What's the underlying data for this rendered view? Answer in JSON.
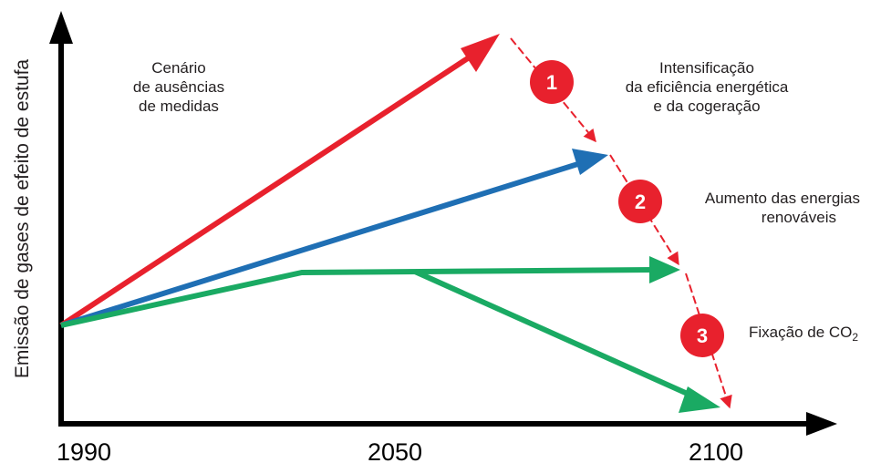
{
  "chart_data": {
    "type": "line",
    "title": "",
    "xlabel": "",
    "ylabel": "Emissão de gases de efeito de estufa",
    "x_ticks": [
      "1990",
      "2050",
      "2100"
    ],
    "series": [
      {
        "color": "#e8212d",
        "points": [
          [
            "1990",
            1.0
          ],
          [
            "2075",
            4.9
          ]
        ]
      },
      {
        "color": "#1f6fb4",
        "points": [
          [
            "1990",
            1.0
          ],
          [
            "2090",
            2.9
          ]
        ]
      },
      {
        "color": "#1aaa63",
        "points": [
          [
            "1990",
            1.0
          ],
          [
            "2030",
            1.9
          ],
          [
            "2100",
            1.9
          ]
        ]
      },
      {
        "color": "#1aaa63",
        "points": [
          [
            "2050",
            1.9
          ],
          [
            "2100",
            0.25
          ]
        ]
      }
    ],
    "steps": [
      {
        "number": "1",
        "label_lines": [
          "Intensificação",
          "da eficiência energética",
          "e da cogeração"
        ]
      },
      {
        "number": "2",
        "label_lines": [
          "Aumento das energias",
          "renováveis"
        ]
      },
      {
        "number": "3",
        "label_main": "Fixação de CO",
        "label_sub": "2"
      }
    ],
    "annotation_lines": [
      "Cenário",
      "de ausências",
      "de medidas"
    ],
    "colors": {
      "red": "#e8212d",
      "blue": "#1f6fb4",
      "green": "#1aaa63",
      "axis": "#000000"
    },
    "grid": false,
    "legend": "none"
  }
}
